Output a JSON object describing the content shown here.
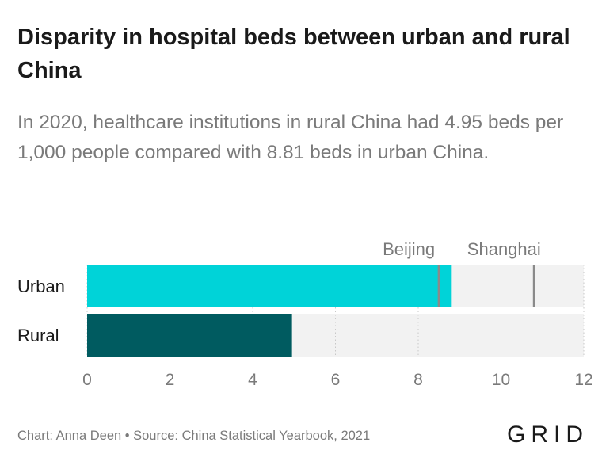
{
  "header": {
    "title": "Disparity in hospital beds between urban and rural China",
    "subtitle": "In 2020, healthcare institutions in rural China had 4.95 beds per 1,000 people compared with 8.81 beds in urban China."
  },
  "chart_data": {
    "type": "bar",
    "orientation": "horizontal",
    "categories": [
      "Urban",
      "Rural"
    ],
    "values": [
      8.81,
      4.95
    ],
    "colors": [
      "#00d3d8",
      "#005b60"
    ],
    "background_color": "#f2f2f2",
    "xlim": [
      0,
      12
    ],
    "x_ticks": [
      "0",
      "2",
      "4",
      "6",
      "8",
      "10",
      "12"
    ],
    "grid": "dotted vertical",
    "reference_markers": [
      {
        "label": "Beijing",
        "value": 8.5,
        "category": "Urban"
      },
      {
        "label": "Shanghai",
        "value": 10.8,
        "category": "Urban"
      }
    ],
    "marker_color": "#8a8a8a"
  },
  "footer": {
    "source": "Chart: Anna Deen • Source: China Statistical Yearbook, 2021",
    "logo": "GRID"
  }
}
